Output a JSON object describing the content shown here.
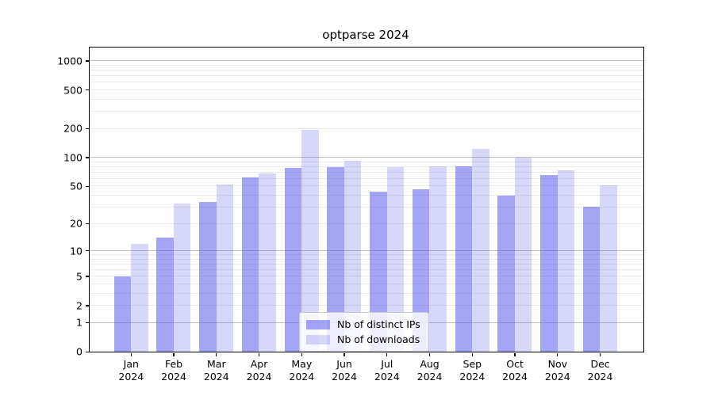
{
  "title": "optparse 2024",
  "legend": {
    "items": [
      {
        "label": "Nb of distinct IPs"
      },
      {
        "label": "Nb of downloads"
      }
    ]
  },
  "y_axis": {
    "ticks": [
      {
        "value": 1000,
        "label": "1000"
      },
      {
        "value": 500,
        "label": "500"
      },
      {
        "value": 200,
        "label": "200"
      },
      {
        "value": 100,
        "label": "100"
      },
      {
        "value": 50,
        "label": "50"
      },
      {
        "value": 20,
        "label": "20"
      },
      {
        "value": 10,
        "label": "10"
      },
      {
        "value": 5,
        "label": "5"
      },
      {
        "value": 2,
        "label": "2"
      },
      {
        "value": 1,
        "label": "1"
      },
      {
        "value": 0,
        "label": "0"
      }
    ]
  },
  "colors": {
    "bar_base": "#5f5fed",
    "ips_fill": "rgba(95,95,237,0.57)",
    "downloads_fill": "rgba(95,95,237,0.25)",
    "ips_rendered": "#a9a9f3",
    "downloads_rendered": "#d7d7f9",
    "grid_major": "#bdbdbd",
    "grid_minor": "#eaeaea",
    "spine": "#000000"
  },
  "chart_data": {
    "type": "bar",
    "title": "optparse 2024",
    "categories": [
      "Jan 2024",
      "Feb 2024",
      "Mar 2024",
      "Apr 2024",
      "May 2024",
      "Jun 2024",
      "Jul 2024",
      "Aug 2024",
      "Sep 2024",
      "Oct 2024",
      "Nov 2024",
      "Dec 2024"
    ],
    "series": [
      {
        "name": "Nb of distinct IPs",
        "values": [
          5,
          14,
          34,
          62,
          78,
          79,
          44,
          46,
          80,
          40,
          65,
          30
        ]
      },
      {
        "name": "Nb of downloads",
        "values": [
          12,
          33,
          52,
          68,
          193,
          92,
          79,
          80,
          122,
          100,
          74,
          51
        ]
      }
    ],
    "xlabel": "",
    "ylabel": "",
    "yscale": "log1p",
    "ylim": [
      0,
      1370
    ],
    "y_ticks": [
      0,
      1,
      2,
      5,
      10,
      20,
      50,
      100,
      200,
      500,
      1000
    ],
    "grid": "horizontal",
    "legend_position": "lower center"
  }
}
